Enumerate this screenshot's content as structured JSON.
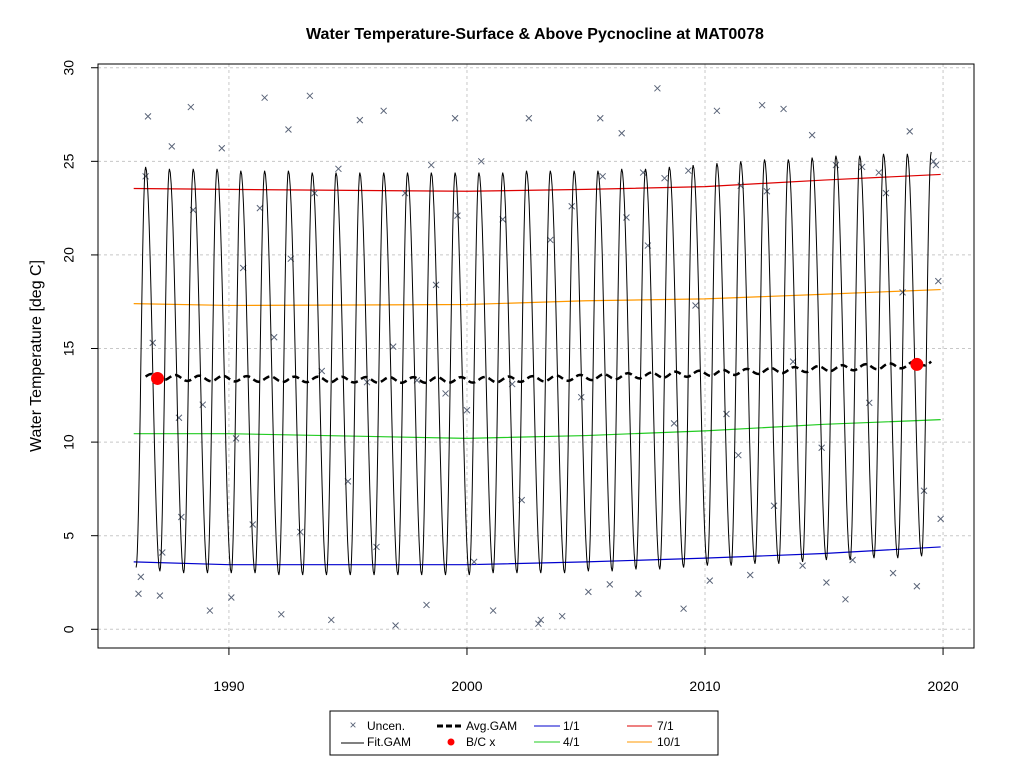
{
  "chart_data": {
    "type": "line",
    "title": "Water Temperature-Surface & Above Pycnocline at MAT0078",
    "xlabel": "",
    "ylabel": "Water Temperature [deg C]",
    "xlim": [
      1984.5,
      2021.3
    ],
    "ylim": [
      -1,
      30.2
    ],
    "x_ticks": [
      "1990",
      "2000",
      "2010",
      "2020"
    ],
    "x_tick_values": [
      1990,
      2000,
      2010,
      2020
    ],
    "y_ticks": [
      "0",
      "5",
      "10",
      "15",
      "20",
      "25",
      "30"
    ],
    "y_tick_values": [
      0,
      5,
      10,
      15,
      20,
      25,
      30
    ],
    "grid": true,
    "legend_position": "bottom-center",
    "legend": {
      "uncensored": "Uncen.",
      "fit_gam": "Fit.GAM",
      "avg_gam": "Avg.GAM",
      "bc": "B/C x",
      "d11": "1/1",
      "d41": "4/1",
      "d71": "7/1",
      "d101": "10/1"
    },
    "colors": {
      "uncensored": "#5a6478",
      "fit_gam": "#000000",
      "avg_gam": "#000000",
      "bc": "#ff0000",
      "d11": "#0000cd",
      "d41": "#22cc22",
      "d71": "#dd0000",
      "d101": "#ff9900",
      "grid": "#c8c8c8"
    },
    "fit_gam": {
      "x_start": 1986.2,
      "x_end": 2019.8,
      "peak_day_fraction": 0.6,
      "peaks": [
        [
          1986.5,
          24.7
        ],
        [
          1987.5,
          24.6
        ],
        [
          1988.5,
          24.6
        ],
        [
          1989.5,
          24.6
        ],
        [
          1990.5,
          24.5
        ],
        [
          1991.5,
          24.5
        ],
        [
          1992.5,
          24.5
        ],
        [
          1993.5,
          24.4
        ],
        [
          1994.5,
          24.4
        ],
        [
          1995.5,
          24.4
        ],
        [
          1996.5,
          24.4
        ],
        [
          1997.5,
          24.4
        ],
        [
          1998.5,
          24.4
        ],
        [
          1999.5,
          24.4
        ],
        [
          2000.5,
          24.4
        ],
        [
          2001.5,
          24.4
        ],
        [
          2002.5,
          24.5
        ],
        [
          2003.5,
          24.5
        ],
        [
          2004.5,
          24.5
        ],
        [
          2005.5,
          24.5
        ],
        [
          2006.5,
          24.6
        ],
        [
          2007.5,
          24.6
        ],
        [
          2008.5,
          24.7
        ],
        [
          2009.5,
          24.8
        ],
        [
          2010.5,
          24.9
        ],
        [
          2011.5,
          25.0
        ],
        [
          2012.5,
          25.1
        ],
        [
          2013.5,
          25.1
        ],
        [
          2014.5,
          25.2
        ],
        [
          2015.5,
          25.3
        ],
        [
          2016.5,
          25.3
        ],
        [
          2017.5,
          25.4
        ],
        [
          2018.5,
          25.4
        ],
        [
          2019.5,
          25.5
        ]
      ],
      "troughs": [
        [
          1986.1,
          3.3
        ],
        [
          1987.1,
          3.1
        ],
        [
          1988.1,
          3.0
        ],
        [
          1989.1,
          3.0
        ],
        [
          1990.1,
          3.0
        ],
        [
          1991.1,
          3.0
        ],
        [
          1992.1,
          2.9
        ],
        [
          1993.1,
          2.9
        ],
        [
          1994.1,
          2.9
        ],
        [
          1995.1,
          2.9
        ],
        [
          1996.1,
          2.9
        ],
        [
          1997.1,
          2.9
        ],
        [
          1998.1,
          2.9
        ],
        [
          1999.1,
          2.9
        ],
        [
          2000.1,
          2.9
        ],
        [
          2001.1,
          3.0
        ],
        [
          2002.1,
          3.0
        ],
        [
          2003.1,
          3.0
        ],
        [
          2004.1,
          3.0
        ],
        [
          2005.1,
          3.1
        ],
        [
          2006.1,
          3.1
        ],
        [
          2007.1,
          3.2
        ],
        [
          2008.1,
          3.2
        ],
        [
          2009.1,
          3.3
        ],
        [
          2010.1,
          3.4
        ],
        [
          2011.1,
          3.4
        ],
        [
          2012.1,
          3.5
        ],
        [
          2013.1,
          3.5
        ],
        [
          2014.1,
          3.6
        ],
        [
          2015.1,
          3.7
        ],
        [
          2016.1,
          3.7
        ],
        [
          2017.1,
          3.8
        ],
        [
          2018.1,
          3.8
        ],
        [
          2019.1,
          3.9
        ]
      ]
    },
    "avg_gam": {
      "x": [
        1986.5,
        1987.5,
        1988.5,
        1989.5,
        1990.5,
        1991.5,
        1992.5,
        1993.5,
        1994.5,
        1995.5,
        1996.5,
        1997.5,
        1998.5,
        1999.5,
        2000.5,
        2001.5,
        2002.5,
        2003.5,
        2004.5,
        2005.5,
        2006.5,
        2007.5,
        2008.5,
        2009.5,
        2010.5,
        2011.5,
        2012.5,
        2013.5,
        2014.5,
        2015.5,
        2016.5,
        2017.5,
        2018.5,
        2019.5
      ],
      "y": [
        13.5,
        13.45,
        13.4,
        13.4,
        13.38,
        13.37,
        13.35,
        13.35,
        13.34,
        13.33,
        13.32,
        13.32,
        13.32,
        13.32,
        13.33,
        13.35,
        13.37,
        13.4,
        13.43,
        13.47,
        13.52,
        13.56,
        13.6,
        13.65,
        13.7,
        13.75,
        13.8,
        13.85,
        13.9,
        13.95,
        14.0,
        14.05,
        14.1,
        14.3
      ]
    },
    "bc_points": {
      "x": [
        1987.0,
        2018.9
      ],
      "y": [
        13.4,
        14.15
      ]
    },
    "day_lines": [
      {
        "key": "d11",
        "x": [
          1986.0,
          1990.0,
          2000.0,
          2005.0,
          2010.0,
          2015.0,
          2019.9
        ],
        "y": [
          3.6,
          3.45,
          3.45,
          3.6,
          3.8,
          4.05,
          4.4
        ]
      },
      {
        "key": "d41",
        "x": [
          1986.0,
          1990.0,
          2000.0,
          2005.0,
          2010.0,
          2015.0,
          2019.9
        ],
        "y": [
          10.45,
          10.45,
          10.2,
          10.35,
          10.6,
          10.95,
          11.2
        ]
      },
      {
        "key": "d71",
        "x": [
          1986.0,
          1990.0,
          2000.0,
          2005.0,
          2010.0,
          2015.0,
          2019.9
        ],
        "y": [
          23.55,
          23.5,
          23.4,
          23.5,
          23.65,
          24.0,
          24.3
        ]
      },
      {
        "key": "d101",
        "x": [
          1986.0,
          1990.0,
          2000.0,
          2005.0,
          2010.0,
          2015.0,
          2019.9
        ],
        "y": [
          17.4,
          17.3,
          17.35,
          17.55,
          17.65,
          17.9,
          18.15
        ]
      }
    ],
    "uncensored_points": {
      "x": [
        1986.2,
        1986.3,
        1986.6,
        1986.5,
        1986.8,
        1987.1,
        1987.2,
        1987.6,
        1987.9,
        1988.0,
        1988.4,
        1988.5,
        1988.9,
        1989.2,
        1989.7,
        1990.1,
        1990.3,
        1990.6,
        1991.0,
        1991.3,
        1991.5,
        1991.9,
        1992.2,
        1992.5,
        1992.6,
        1993.0,
        1993.4,
        1993.6,
        1993.9,
        1994.3,
        1994.6,
        1995.0,
        1995.5,
        1995.8,
        1996.2,
        1996.5,
        1996.9,
        1997.0,
        1997.4,
        1997.9,
        1998.3,
        1998.5,
        1998.7,
        1999.1,
        1999.5,
        1999.6,
        2000.0,
        2000.3,
        2000.6,
        2001.1,
        2001.5,
        2001.9,
        2002.3,
        2002.6,
        2003.0,
        2003.1,
        2003.5,
        2004.0,
        2004.4,
        2004.8,
        2005.1,
        2005.6,
        2005.7,
        2006.0,
        2006.5,
        2006.7,
        2007.2,
        2007.4,
        2007.6,
        2008.0,
        2008.3,
        2008.7,
        2009.1,
        2009.3,
        2009.6,
        2010.2,
        2010.5,
        2010.9,
        2011.4,
        2011.5,
        2011.9,
        2012.4,
        2012.6,
        2012.9,
        2013.3,
        2013.7,
        2014.1,
        2014.5,
        2014.9,
        2015.1,
        2015.5,
        2015.9,
        2016.2,
        2016.6,
        2016.9,
        2017.3,
        2017.6,
        2017.9,
        2018.3,
        2018.6,
        2018.9,
        2019.2,
        2019.6,
        2019.7,
        2019.9,
        2019.8
      ],
      "y": [
        1.9,
        2.8,
        27.4,
        24.2,
        15.3,
        1.8,
        4.1,
        25.8,
        11.3,
        6.0,
        27.9,
        22.4,
        12.0,
        1.0,
        25.7,
        1.7,
        10.2,
        19.3,
        5.6,
        22.5,
        28.4,
        15.6,
        0.8,
        26.7,
        19.8,
        5.2,
        28.5,
        23.3,
        13.8,
        0.5,
        24.6,
        7.9,
        27.2,
        13.2,
        4.4,
        27.7,
        15.1,
        0.2,
        23.3,
        13.3,
        1.3,
        24.8,
        18.4,
        12.6,
        27.3,
        22.1,
        11.7,
        3.6,
        25.0,
        1.0,
        21.9,
        13.1,
        6.9,
        27.3,
        0.3,
        0.5,
        20.8,
        0.7,
        22.6,
        12.4,
        2.0,
        27.3,
        24.2,
        2.4,
        26.5,
        22.0,
        1.9,
        24.4,
        20.5,
        28.9,
        24.1,
        11.0,
        1.1,
        24.5,
        17.3,
        2.6,
        27.7,
        11.5,
        9.3,
        23.7,
        2.9,
        28.0,
        23.4,
        6.6,
        27.8,
        14.3,
        3.4,
        26.4,
        9.7,
        2.5,
        24.8,
        1.6,
        3.7,
        24.7,
        12.1,
        24.4,
        23.3,
        3.0,
        18.0,
        26.6,
        2.3,
        7.4,
        25.0,
        24.8,
        5.9,
        18.6
      ]
    }
  }
}
